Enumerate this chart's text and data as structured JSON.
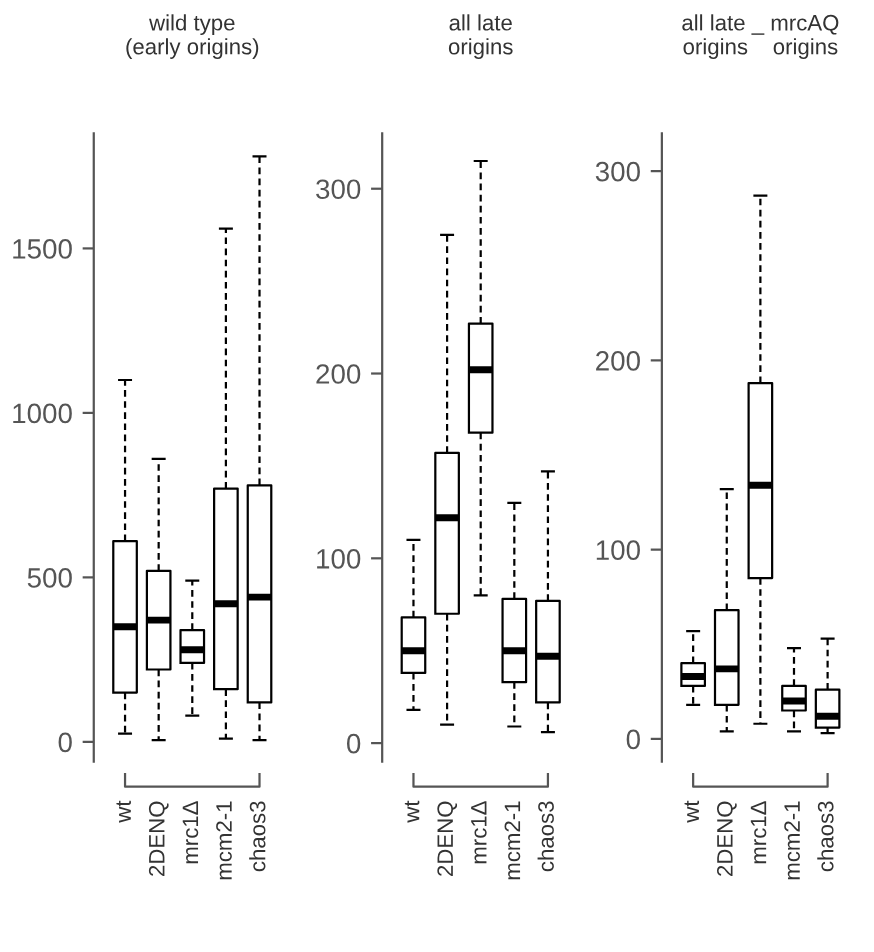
{
  "chart_data": [
    {
      "type": "box",
      "title": "wild type\n(early origins)",
      "categories": [
        "wt",
        "2DENQ",
        "mrc1Δ",
        "mcm2-1",
        "chaos3"
      ],
      "ylim": [
        -60,
        1850
      ],
      "yticks": [
        0,
        500,
        1000,
        1500
      ],
      "grid": false,
      "legend": false,
      "color": "#000000",
      "boxes": [
        {
          "low": 25,
          "q1": 150,
          "median": 350,
          "q3": 610,
          "high": 1100
        },
        {
          "low": 5,
          "q1": 220,
          "median": 370,
          "q3": 520,
          "high": 860
        },
        {
          "low": 80,
          "q1": 240,
          "median": 280,
          "q3": 340,
          "high": 490
        },
        {
          "low": 10,
          "q1": 160,
          "median": 420,
          "q3": 770,
          "high": 1560
        },
        {
          "low": 5,
          "q1": 120,
          "median": 440,
          "q3": 780,
          "high": 1780
        }
      ]
    },
    {
      "type": "box",
      "title": "all late\norigins",
      "categories": [
        "wt",
        "2DENQ",
        "mrc1Δ",
        "mcm2-1",
        "chaos3"
      ],
      "ylim": [
        -10,
        330
      ],
      "yticks": [
        0,
        100,
        200,
        300
      ],
      "grid": false,
      "legend": false,
      "color": "#000000",
      "boxes": [
        {
          "low": 18,
          "q1": 38,
          "median": 50,
          "q3": 68,
          "high": 110
        },
        {
          "low": 10,
          "q1": 70,
          "median": 122,
          "q3": 157,
          "high": 275
        },
        {
          "low": 80,
          "q1": 168,
          "median": 202,
          "q3": 227,
          "high": 315
        },
        {
          "low": 9,
          "q1": 33,
          "median": 50,
          "q3": 78,
          "high": 130
        },
        {
          "low": 6,
          "q1": 22,
          "median": 47,
          "q3": 77,
          "high": 147
        }
      ]
    },
    {
      "type": "box",
      "title": "all late _ mrcAQ\norigins    origins",
      "categories": [
        "wt",
        "2DENQ",
        "mrc1Δ",
        "mcm2-1",
        "chaos3"
      ],
      "ylim": [
        -12,
        320
      ],
      "yticks": [
        0,
        100,
        200,
        300
      ],
      "grid": false,
      "legend": false,
      "color": "#000000",
      "boxes": [
        {
          "low": 18,
          "q1": 28,
          "median": 33,
          "q3": 40,
          "high": 57
        },
        {
          "low": 4,
          "q1": 18,
          "median": 37,
          "q3": 68,
          "high": 132
        },
        {
          "low": 8,
          "q1": 85,
          "median": 134,
          "q3": 188,
          "high": 287
        },
        {
          "low": 4,
          "q1": 15,
          "median": 20,
          "q3": 28,
          "high": 48
        },
        {
          "low": 3,
          "q1": 6,
          "median": 12,
          "q3": 26,
          "high": 53
        }
      ]
    }
  ]
}
